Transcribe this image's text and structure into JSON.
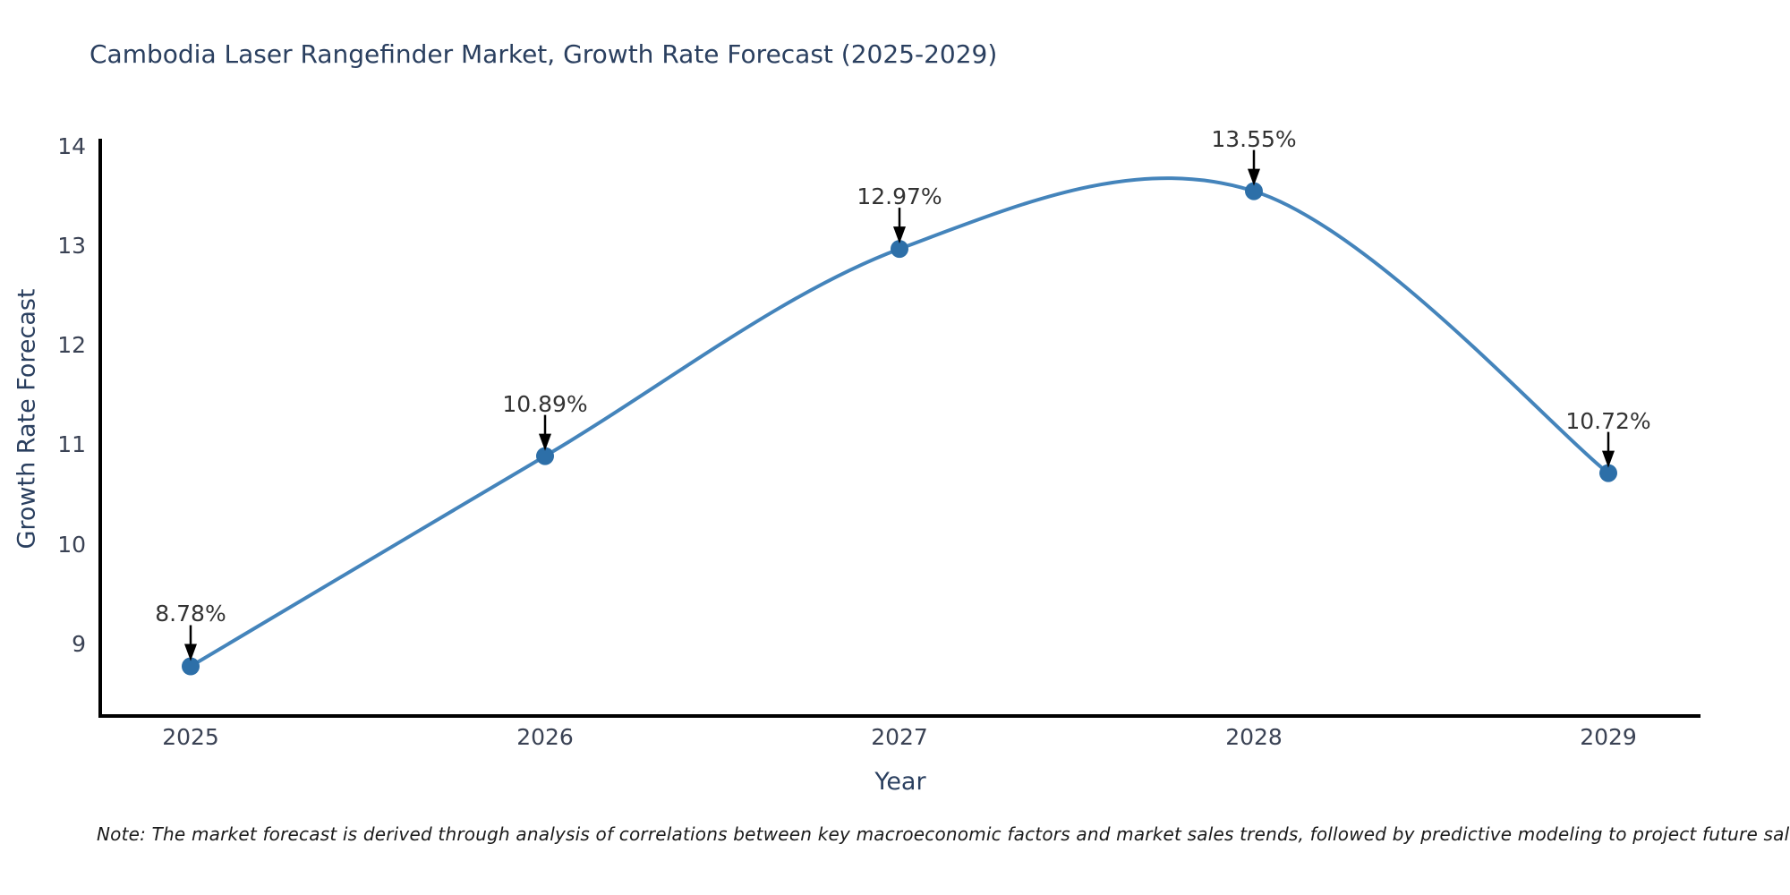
{
  "chart_data": {
    "type": "line",
    "title": "Cambodia Laser Rangefinder Market, Growth Rate Forecast (2025-2029)",
    "xlabel": "Year",
    "ylabel": "Growth Rate Forecast",
    "x": [
      2025,
      2026,
      2027,
      2028,
      2029
    ],
    "values": [
      8.78,
      10.89,
      12.97,
      13.55,
      10.72
    ],
    "point_labels": [
      "8.78%",
      "10.89%",
      "12.97%",
      "13.55%",
      "10.72%"
    ],
    "yticks": [
      9,
      10,
      11,
      12,
      13,
      14
    ],
    "ylim": [
      8.2,
      14.05
    ],
    "grid": false,
    "legend": "none",
    "curve_style": "smooth-spline",
    "line_color": "#4484bb",
    "marker_color": "#2d6fa8",
    "arrow_color": "#000000",
    "axis_color": "#000000",
    "note": "Note: The market forecast is derived through analysis of correlations between key macroeconomic factors and market sales trends, followed by predictive modeling to project future sales"
  }
}
